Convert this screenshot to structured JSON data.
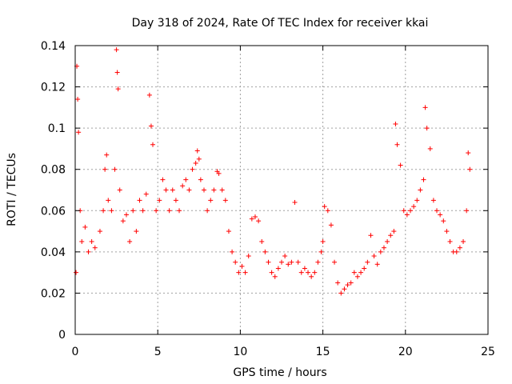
{
  "chart_data": {
    "type": "scatter",
    "title": "Day 318 of 2024, Rate Of TEC Index for receiver kkai",
    "xlabel": "GPS time / hours",
    "ylabel": "ROTI / TECUs",
    "xlim": [
      0,
      25
    ],
    "ylim": [
      0,
      0.14
    ],
    "x_ticks": [
      0,
      5,
      10,
      15,
      20,
      25
    ],
    "x_tick_labels": [
      "0",
      "5",
      "10",
      "15",
      "20",
      "25"
    ],
    "y_ticks": [
      0,
      0.02,
      0.04,
      0.06,
      0.08,
      0.1,
      0.12,
      0.14
    ],
    "y_tick_labels": [
      "0",
      "0.02",
      "0.04",
      "0.06",
      "0.08",
      "0.1",
      "0.12",
      "0.14"
    ],
    "grid": true,
    "marker": "+",
    "color": "#ff0000",
    "series": [
      {
        "name": "ROTI",
        "x": [
          0.05,
          0.1,
          0.15,
          0.2,
          0.3,
          0.4,
          0.6,
          0.8,
          1.0,
          1.2,
          1.5,
          1.7,
          1.8,
          1.9,
          2.0,
          2.2,
          2.4,
          2.5,
          2.55,
          2.6,
          2.7,
          2.9,
          3.1,
          3.3,
          3.5,
          3.7,
          3.9,
          4.1,
          4.3,
          4.5,
          4.6,
          4.7,
          4.9,
          5.1,
          5.3,
          5.5,
          5.7,
          5.9,
          6.1,
          6.3,
          6.5,
          6.7,
          6.9,
          7.1,
          7.3,
          7.4,
          7.5,
          7.6,
          7.8,
          8.0,
          8.2,
          8.4,
          8.6,
          8.7,
          8.9,
          9.1,
          9.3,
          9.5,
          9.7,
          9.9,
          10.1,
          10.3,
          10.5,
          10.7,
          10.9,
          11.1,
          11.3,
          11.5,
          11.7,
          11.9,
          12.1,
          12.3,
          12.5,
          12.7,
          12.9,
          13.1,
          13.3,
          13.5,
          13.7,
          13.9,
          14.1,
          14.3,
          14.5,
          14.7,
          14.9,
          15.0,
          15.1,
          15.3,
          15.5,
          15.7,
          15.9,
          16.1,
          16.3,
          16.5,
          16.7,
          16.9,
          17.1,
          17.3,
          17.5,
          17.7,
          17.9,
          18.1,
          18.3,
          18.5,
          18.7,
          18.9,
          19.1,
          19.3,
          19.4,
          19.5,
          19.7,
          19.9,
          20.1,
          20.3,
          20.5,
          20.7,
          20.9,
          21.1,
          21.2,
          21.3,
          21.5,
          21.7,
          21.9,
          22.1,
          22.3,
          22.5,
          22.7,
          22.9,
          23.1,
          23.3,
          23.5,
          23.7,
          23.8,
          23.9
        ],
        "y": [
          0.03,
          0.13,
          0.114,
          0.098,
          0.06,
          0.045,
          0.052,
          0.04,
          0.045,
          0.042,
          0.05,
          0.06,
          0.08,
          0.087,
          0.065,
          0.06,
          0.08,
          0.138,
          0.127,
          0.119,
          0.07,
          0.055,
          0.058,
          0.045,
          0.06,
          0.05,
          0.065,
          0.06,
          0.068,
          0.116,
          0.101,
          0.092,
          0.06,
          0.065,
          0.075,
          0.07,
          0.06,
          0.07,
          0.065,
          0.06,
          0.072,
          0.075,
          0.07,
          0.08,
          0.083,
          0.089,
          0.085,
          0.075,
          0.07,
          0.06,
          0.065,
          0.07,
          0.079,
          0.078,
          0.07,
          0.065,
          0.05,
          0.04,
          0.035,
          0.03,
          0.033,
          0.03,
          0.038,
          0.056,
          0.057,
          0.055,
          0.045,
          0.04,
          0.035,
          0.03,
          0.028,
          0.032,
          0.035,
          0.038,
          0.034,
          0.035,
          0.064,
          0.035,
          0.03,
          0.032,
          0.03,
          0.028,
          0.03,
          0.035,
          0.04,
          0.045,
          0.062,
          0.06,
          0.053,
          0.035,
          0.025,
          0.02,
          0.022,
          0.024,
          0.025,
          0.03,
          0.028,
          0.03,
          0.032,
          0.035,
          0.048,
          0.038,
          0.034,
          0.04,
          0.042,
          0.045,
          0.048,
          0.05,
          0.102,
          0.092,
          0.082,
          0.06,
          0.058,
          0.06,
          0.062,
          0.065,
          0.07,
          0.075,
          0.11,
          0.1,
          0.09,
          0.065,
          0.06,
          0.058,
          0.055,
          0.05,
          0.045,
          0.04,
          0.04,
          0.042,
          0.045,
          0.06,
          0.088,
          0.08
        ]
      }
    ]
  }
}
